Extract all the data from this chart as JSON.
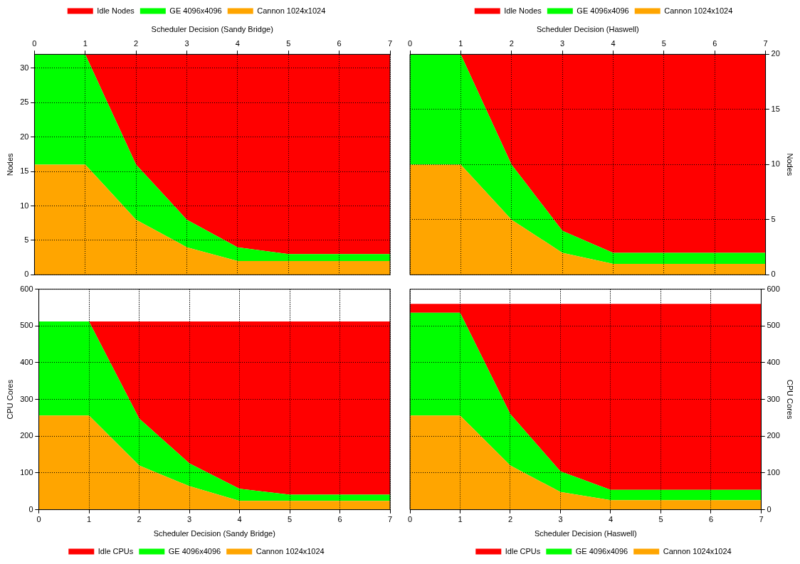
{
  "chart_data": [
    {
      "type": "area",
      "stacked": true,
      "x": [
        0,
        1,
        2,
        3,
        4,
        5,
        6,
        7
      ],
      "xlim": [
        0,
        7
      ],
      "xticks": [
        0,
        1,
        2,
        3,
        4,
        5,
        6,
        7
      ],
      "xlabel": "Scheduler Decision (Sandy Bridge)",
      "ylabel": "Nodes",
      "ylim": [
        0,
        32
      ],
      "yticks": [
        0,
        5,
        10,
        15,
        20,
        25,
        30
      ],
      "grid": true,
      "legend": "top",
      "series": [
        {
          "name": "Cannon 1024x1024",
          "color": "#ffa500",
          "values": [
            16,
            16,
            8,
            4,
            2,
            2,
            2,
            2
          ]
        },
        {
          "name": "GE 4096x4096",
          "color": "#00ff00",
          "values": [
            16,
            16,
            8,
            4,
            2,
            1,
            1,
            1
          ]
        },
        {
          "name": "Idle Nodes",
          "color": "#ff0000",
          "values": [
            0,
            0,
            16,
            24,
            28,
            29,
            29,
            29
          ]
        }
      ]
    },
    {
      "type": "area",
      "stacked": true,
      "x": [
        0,
        1,
        2,
        3,
        4,
        5,
        6,
        7
      ],
      "xlim": [
        0,
        7
      ],
      "xticks": [
        0,
        1,
        2,
        3,
        4,
        5,
        6,
        7
      ],
      "xlabel": "Scheduler Decision (Haswell)",
      "y2label": "Nodes",
      "y2lim": [
        0,
        20
      ],
      "y2ticks": [
        0,
        5,
        10,
        15,
        20
      ],
      "grid": true,
      "legend": "top",
      "series": [
        {
          "name": "Cannon 1024x1024",
          "color": "#ffa500",
          "axis": "y2",
          "values": [
            10,
            10,
            5,
            2,
            1,
            1,
            1,
            1
          ]
        },
        {
          "name": "GE 4096x4096",
          "color": "#00ff00",
          "axis": "y2",
          "values": [
            10,
            10,
            5,
            2,
            1,
            1,
            1,
            1
          ]
        },
        {
          "name": "Idle Nodes",
          "color": "#ff0000",
          "axis": "y2",
          "values": [
            0,
            0,
            10,
            16,
            18,
            18,
            18,
            18
          ]
        }
      ]
    },
    {
      "type": "area",
      "stacked": true,
      "x": [
        0,
        1,
        2,
        3,
        4,
        5,
        6,
        7
      ],
      "xlim": [
        0,
        7
      ],
      "xticks": [
        0,
        1,
        2,
        3,
        4,
        5,
        6,
        7
      ],
      "xlabel": "Scheduler Decision (Sandy Bridge)",
      "ylabel": "CPU Cores",
      "ylim": [
        0,
        600
      ],
      "yticks": [
        0,
        100,
        200,
        300,
        400,
        500,
        600
      ],
      "grid": true,
      "legend": "bottom",
      "series": [
        {
          "name": "Cannon 1024x1024",
          "color": "#ffa500",
          "values": [
            256,
            256,
            120,
            64,
            24,
            24,
            24,
            24
          ]
        },
        {
          "name": "GE 4096x4096",
          "color": "#00ff00",
          "values": [
            256,
            256,
            128,
            62,
            33,
            17,
            17,
            17
          ]
        },
        {
          "name": "Idle CPUs",
          "color": "#ff0000",
          "values": [
            0,
            0,
            264,
            386,
            455,
            471,
            471,
            471
          ]
        }
      ]
    },
    {
      "type": "area",
      "stacked": true,
      "x": [
        0,
        1,
        2,
        3,
        4,
        5,
        6,
        7
      ],
      "xlim": [
        0,
        7
      ],
      "xticks": [
        0,
        1,
        2,
        3,
        4,
        5,
        6,
        7
      ],
      "xlabel": "Scheduler Decision (Haswell)",
      "y2label": "CPU Cores",
      "y2lim": [
        0,
        600
      ],
      "y2ticks": [
        0,
        100,
        200,
        300,
        400,
        500,
        600
      ],
      "grid": true,
      "legend": "bottom",
      "series": [
        {
          "name": "Cannon 1024x1024",
          "color": "#ffa500",
          "axis": "y2",
          "values": [
            256,
            256,
            120,
            48,
            26,
            26,
            26,
            26
          ]
        },
        {
          "name": "GE 4096x4096",
          "color": "#00ff00",
          "axis": "y2",
          "values": [
            280,
            280,
            140,
            56,
            28,
            28,
            28,
            28
          ]
        },
        {
          "name": "Idle CPUs",
          "color": "#ff0000",
          "axis": "y2",
          "values": [
            24,
            24,
            300,
            456,
            506,
            506,
            506,
            506
          ]
        }
      ]
    }
  ]
}
